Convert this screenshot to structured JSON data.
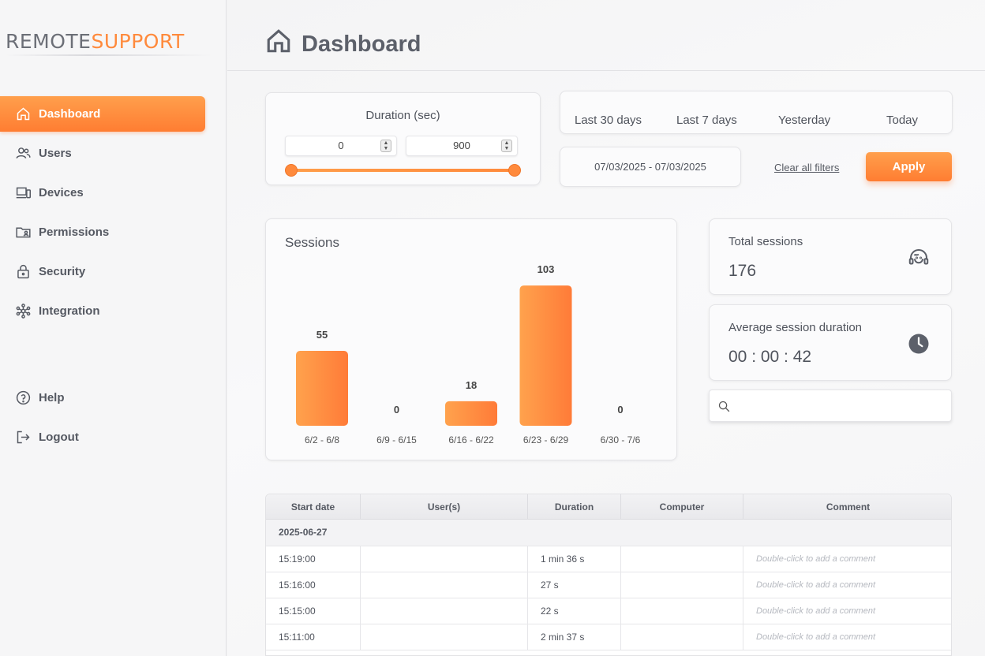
{
  "brand": {
    "part1": "REMOTE",
    "part2": "SUPPORT"
  },
  "sidebar": {
    "items": [
      {
        "label": "Dashboard",
        "icon": "home-icon"
      },
      {
        "label": "Users",
        "icon": "users-icon"
      },
      {
        "label": "Devices",
        "icon": "devices-icon"
      },
      {
        "label": "Permissions",
        "icon": "folder-user-icon"
      },
      {
        "label": "Security",
        "icon": "lock-icon"
      },
      {
        "label": "Integration",
        "icon": "network-icon"
      },
      {
        "label": "Help",
        "icon": "help-icon"
      },
      {
        "label": "Logout",
        "icon": "logout-icon"
      }
    ],
    "active": "Dashboard",
    "accent": "#ff8a3c"
  },
  "header": {
    "title": "Dashboard"
  },
  "filters": {
    "duration": {
      "title": "Duration (sec)",
      "min": "0",
      "max": "900"
    },
    "ranges": [
      "Last 30 days",
      "Last 7 days",
      "Yesterday",
      "Today"
    ],
    "date_range": "07/03/2025 - 07/03/2025",
    "clear_label": "Clear all filters",
    "apply_label": "Apply"
  },
  "sessions_chart": {
    "title": "Sessions"
  },
  "chart_data": {
    "type": "bar",
    "categories": [
      "6/2 - 6/8",
      "6/9 - 6/15",
      "6/16 - 6/22",
      "6/23 - 6/29",
      "6/30 - 7/6"
    ],
    "values": [
      55,
      0,
      18,
      103,
      0
    ],
    "title": "Sessions",
    "ylim": [
      0,
      110
    ],
    "grid": false
  },
  "stats": {
    "total_label": "Total sessions",
    "total_value": "176",
    "avg_label": "Average session duration",
    "avg_value": "00 : 00 : 42"
  },
  "search": {
    "placeholder": ""
  },
  "table": {
    "columns": [
      "Start date",
      "User(s)",
      "Duration",
      "Computer",
      "Comment"
    ],
    "group": "2025-06-27",
    "rows": [
      {
        "start": "15:19:00",
        "users": "",
        "duration": "1 min 36 s",
        "computer": "",
        "comment": "Double-click to add a comment"
      },
      {
        "start": "15:16:00",
        "users": "",
        "duration": "27 s",
        "computer": "",
        "comment": "Double-click to add a comment"
      },
      {
        "start": "15:15:00",
        "users": "",
        "duration": "22 s",
        "computer": "",
        "comment": "Double-click to add a comment"
      },
      {
        "start": "15:11:00",
        "users": "",
        "duration": "2 min 37 s",
        "computer": "",
        "comment": "Double-click to add a comment"
      }
    ]
  }
}
